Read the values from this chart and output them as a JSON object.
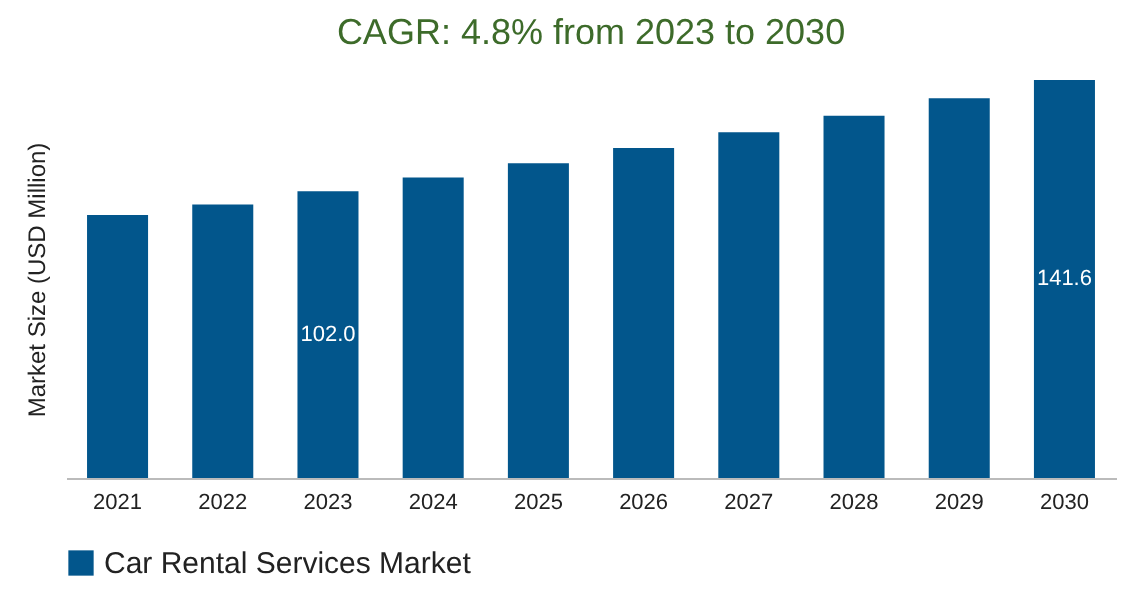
{
  "chart_data": {
    "type": "bar",
    "title": "CAGR: 4.8% from 2023 to 2030",
    "ylabel": "Market Size (USD Million)",
    "categories": [
      "2021",
      "2022",
      "2023",
      "2024",
      "2025",
      "2026",
      "2027",
      "2028",
      "2029",
      "2030"
    ],
    "series": [
      {
        "name": "Car Rental Services Market",
        "color": "#02568c",
        "values": [
          93.6,
          97.3,
          102.0,
          106.9,
          112.0,
          117.4,
          123.0,
          128.9,
          135.1,
          141.6
        ],
        "value_labels": [
          null,
          null,
          "102.0",
          null,
          null,
          null,
          null,
          null,
          null,
          "141.6"
        ]
      }
    ],
    "legend": "bottom",
    "grid": false
  }
}
